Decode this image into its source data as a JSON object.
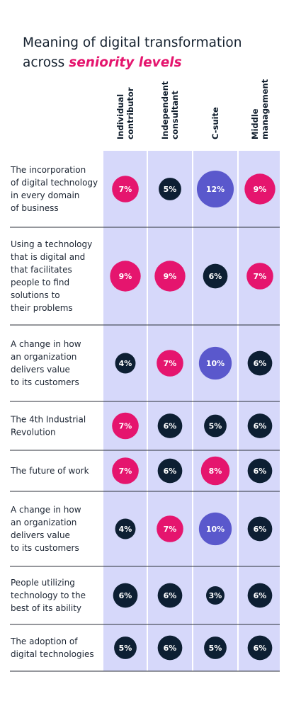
{
  "title": {
    "line1": "Meaning of digital transformation",
    "line2_prefix": "across ",
    "line2_emphasis": "seniority levels"
  },
  "colors": {
    "column_bg": "#d6d8fa",
    "dark": "#0d1f33",
    "pink": "#e5156e",
    "purple": "#5a58cc",
    "divider": "#2b2f38"
  },
  "chart_data": {
    "type": "table",
    "columns": [
      [
        "Individual",
        "contributor"
      ],
      [
        "Independent",
        "consultant"
      ],
      [
        "C-suite"
      ],
      [
        "Middle",
        "management"
      ]
    ],
    "rows": [
      {
        "label": [
          "The incorporation",
          "of digital technology",
          "in every domain",
          "of business"
        ],
        "values": [
          7,
          5,
          12,
          9
        ],
        "colors": [
          "pink",
          "dark",
          "purple",
          "pink"
        ]
      },
      {
        "label": [
          "Using a technology",
          "that is digital and",
          "that facilitates",
          "people to find",
          "solutions to",
          "their problems"
        ],
        "values": [
          9,
          9,
          6,
          7
        ],
        "colors": [
          "pink",
          "pink",
          "dark",
          "pink"
        ]
      },
      {
        "label": [
          "A change in how",
          "an organization",
          "delivers value",
          "to its customers"
        ],
        "values": [
          4,
          7,
          10,
          6
        ],
        "colors": [
          "dark",
          "pink",
          "purple",
          "dark"
        ]
      },
      {
        "label": [
          "The 4th Industrial",
          "Revolution"
        ],
        "values": [
          7,
          6,
          5,
          6
        ],
        "colors": [
          "pink",
          "dark",
          "dark",
          "dark"
        ]
      },
      {
        "label": [
          "The future of work"
        ],
        "values": [
          7,
          6,
          8,
          6
        ],
        "colors": [
          "pink",
          "dark",
          "pink",
          "dark"
        ]
      },
      {
        "label": [
          "A change in how",
          "an organization",
          "delivers value",
          "to its customers"
        ],
        "values": [
          4,
          7,
          10,
          6
        ],
        "colors": [
          "dark",
          "pink",
          "purple",
          "dark"
        ]
      },
      {
        "label": [
          "People utilizing",
          "technology to the",
          "best of its ability"
        ],
        "values": [
          6,
          6,
          3,
          6
        ],
        "colors": [
          "dark",
          "dark",
          "dark",
          "dark"
        ]
      },
      {
        "label": [
          "The adoption of",
          "digital technologies"
        ],
        "values": [
          5,
          6,
          5,
          6
        ],
        "colors": [
          "dark",
          "dark",
          "dark",
          "dark"
        ]
      }
    ],
    "value_suffix": "%"
  }
}
